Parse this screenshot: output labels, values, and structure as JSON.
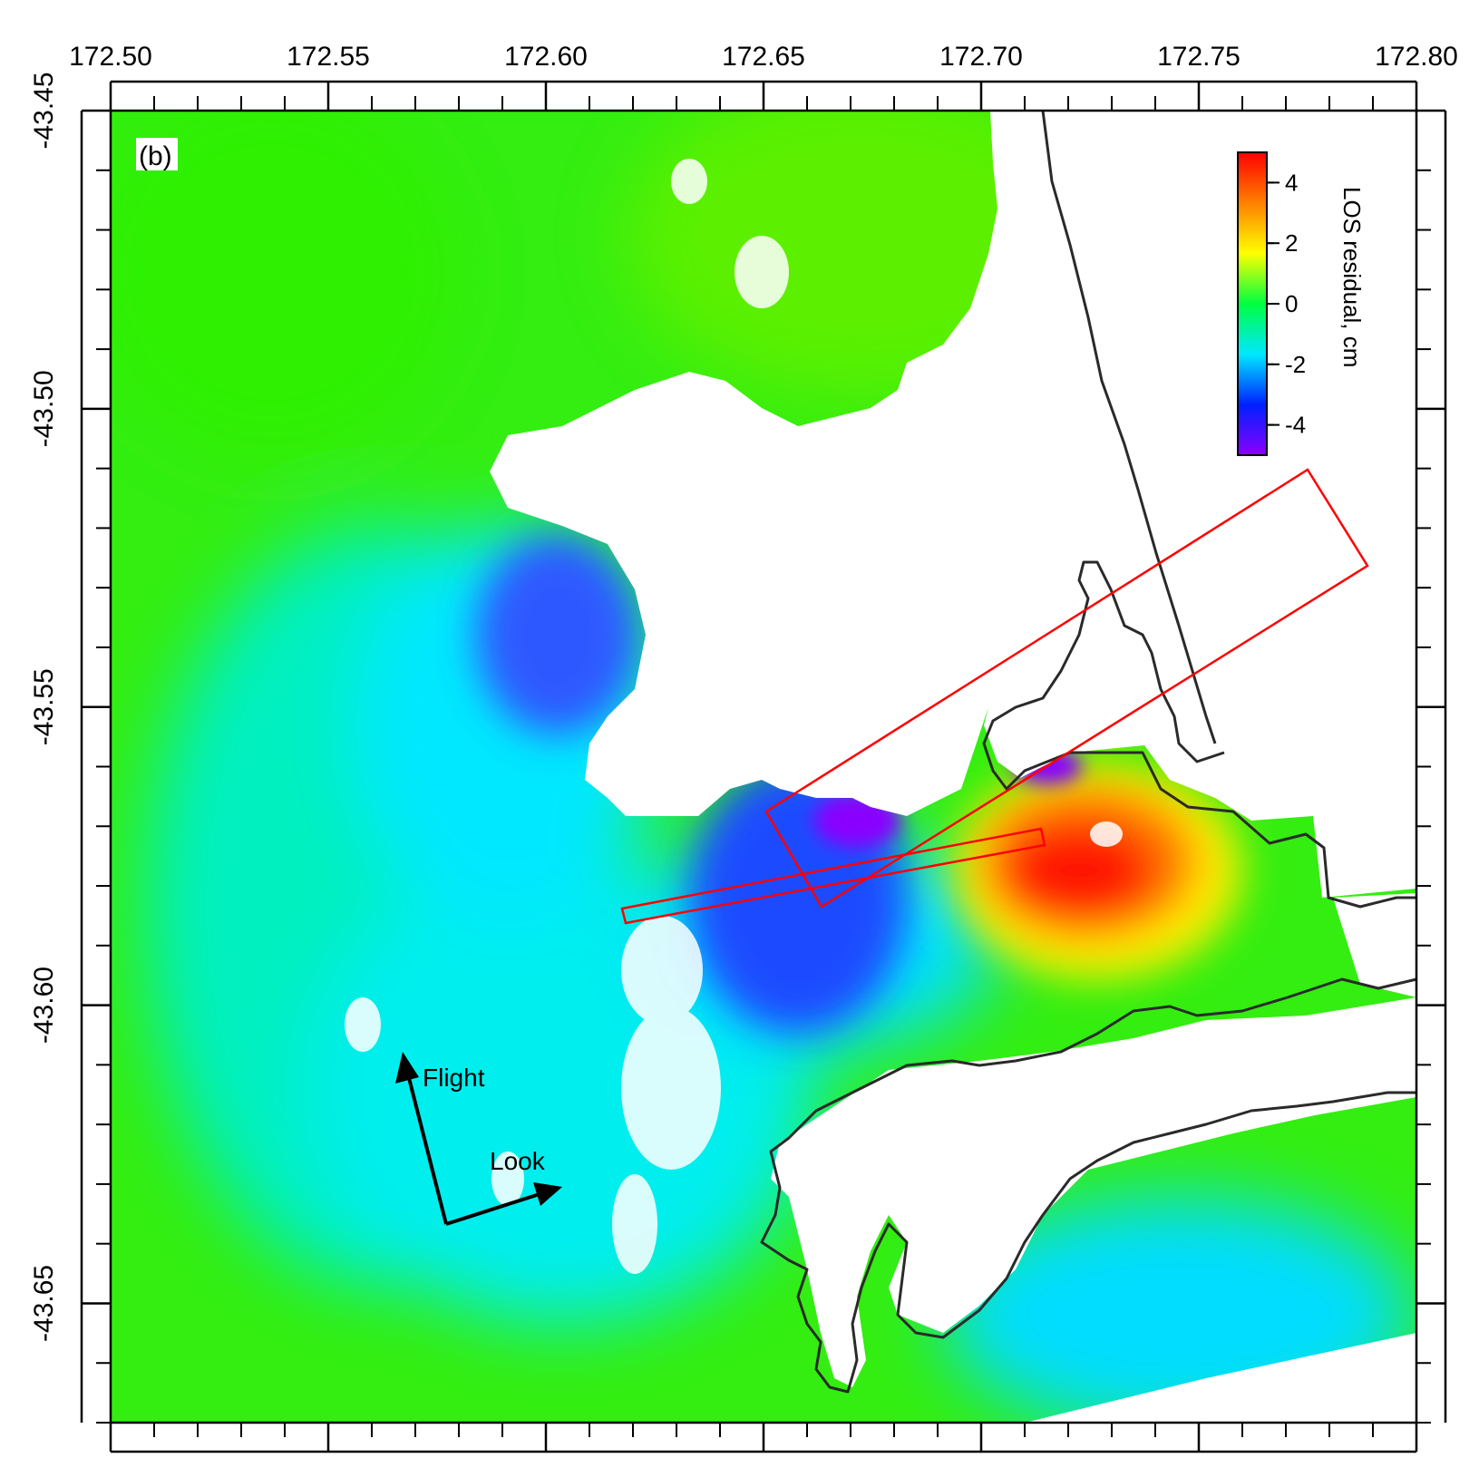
{
  "panel_label": "(b)",
  "x_axis": {
    "ticks": [
      "172.50",
      "172.55",
      "172.60",
      "172.65",
      "172.70",
      "172.75",
      "172.80"
    ],
    "range": [
      172.5,
      172.8
    ]
  },
  "y_axis": {
    "ticks": [
      "-43.45",
      "-43.50",
      "-43.55",
      "-43.60",
      "-43.65"
    ],
    "range": [
      -43.45,
      -43.67
    ]
  },
  "colorbar": {
    "title": "LOS residual, cm",
    "ticks": [
      "4",
      "2",
      "0",
      "-2",
      "-4"
    ],
    "range": [
      -5,
      5
    ],
    "colors": [
      "#8a00ff",
      "#0020ff",
      "#00e8ff",
      "#00ff40",
      "#ffff00",
      "#ff8000",
      "#ff0000"
    ]
  },
  "annotations": {
    "flight": "Flight",
    "look": "Look"
  },
  "colors": {
    "green": "#2ef000",
    "cyan": "#00f0e8",
    "blue": "#1f5cff",
    "purple": "#8a00ff",
    "red": "#ff1400",
    "fault_outline": "#ff0000",
    "coastline": "#2a2a2a"
  },
  "chart_data": {
    "type": "heatmap",
    "xlabel": "",
    "ylabel": "",
    "xlim": [
      172.5,
      172.8
    ],
    "ylim": [
      -43.67,
      -43.45
    ],
    "colorbar_label": "LOS residual, cm",
    "colorbar_range": [
      -5,
      5
    ],
    "colorbar_ticks": [
      4,
      2,
      0,
      -2,
      -4
    ],
    "features": [
      {
        "name": "positive residual lobe",
        "lon": 172.725,
        "lat": -43.581,
        "approx_value_cm": 5
      },
      {
        "name": "negative residual lobe",
        "lon": 172.67,
        "lat": -43.574,
        "approx_value_cm": -5
      },
      {
        "name": "negative residual lobe",
        "lon": 172.705,
        "lat": -43.561,
        "approx_value_cm": -5
      },
      {
        "name": "negative residual zone",
        "lon": 172.595,
        "lat": -43.535,
        "approx_value_cm": -3
      }
    ],
    "fault_planes": [
      {
        "corners": [
          [
            172.651,
            -43.567
          ],
          [
            172.777,
            -43.511
          ],
          [
            172.79,
            -43.527
          ],
          [
            172.664,
            -43.583
          ]
        ]
      },
      {
        "corners": [
          [
            172.617,
            -43.584
          ],
          [
            172.714,
            -43.571
          ],
          [
            172.715,
            -43.574
          ],
          [
            172.618,
            -43.586
          ]
        ]
      }
    ],
    "grid": false
  }
}
